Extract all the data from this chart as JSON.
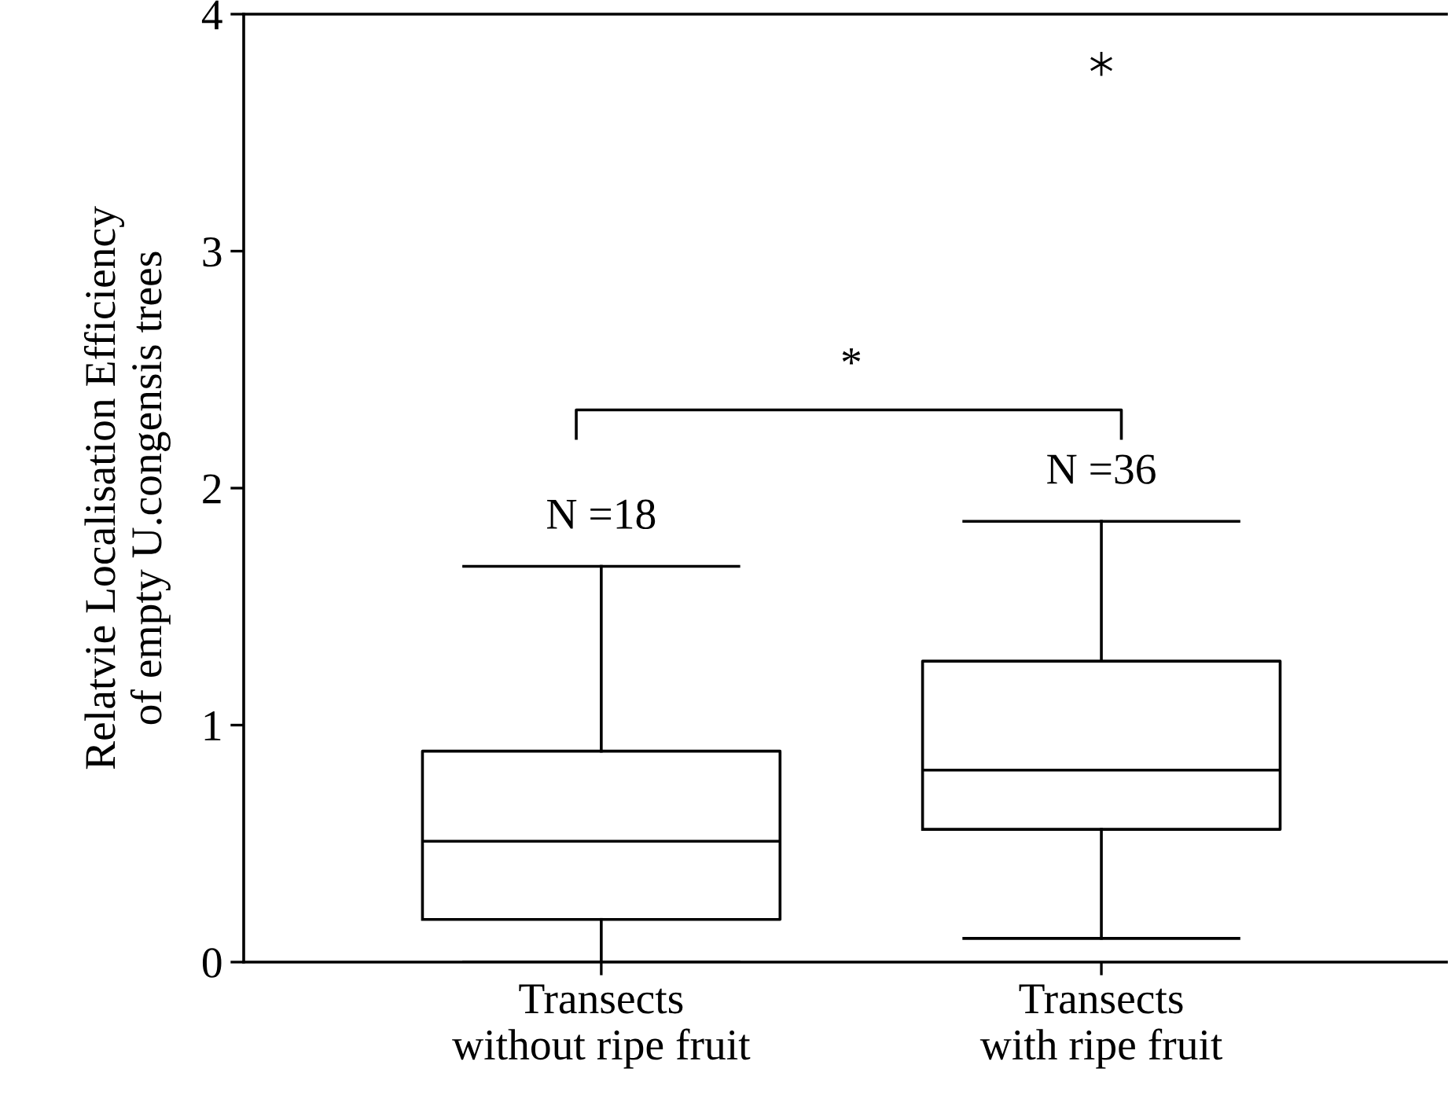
{
  "chart_data": {
    "type": "box",
    "categories": [
      "Transects\nwithout ripe fruit",
      "Transects\nwith ripe fruit"
    ],
    "ylabel": "Relatvie Localisation Efficiency\nof empty U.congensis trees",
    "ylim": [
      0,
      4
    ],
    "yticks": [
      0,
      1,
      2,
      3,
      4
    ],
    "grid": false,
    "marker": "star",
    "boxes": [
      {
        "low": 0,
        "q1": 0.18,
        "median": 0.51,
        "q3": 0.89,
        "high": 1.67
      },
      {
        "low": 0.1,
        "q1": 0.56,
        "median": 0.81,
        "q3": 1.27,
        "high": 1.86,
        "outliers": [
          3.79
        ]
      }
    ],
    "annotations": [
      "N =18",
      "N =36",
      "*"
    ]
  }
}
